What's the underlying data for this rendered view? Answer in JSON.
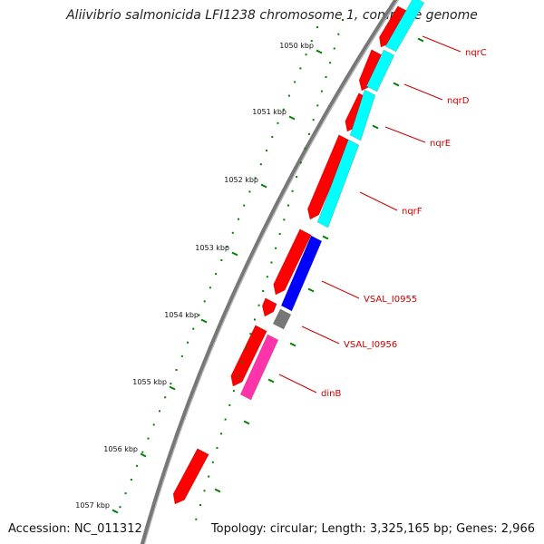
{
  "title": "Aliivibrio salmonicida LFI1238 chromosome 1, complete genome",
  "footer": {
    "accession": "Accession: NC_011312",
    "summary": "Topology: circular; Length: 3,325,165 bp; Genes: 2,966"
  },
  "ticks": [
    "1050 kbp",
    "1051 kbp",
    "1052 kbp",
    "1053 kbp",
    "1054 kbp",
    "1055 kbp",
    "1056 kbp",
    "1057 kbp"
  ],
  "gene_labels": [
    "nqrC",
    "nqrD",
    "nqrE",
    "nqrF",
    "VSAL_I0955",
    "VSAL_I0956",
    "dinB"
  ],
  "colors": {
    "backbone": "#777777",
    "forward_cds": "#ff0000",
    "nqr_operon": "#00ffff",
    "VSAL_I0955": "#0000ff",
    "VSAL_I0956": "#777777",
    "dinB": "#ff33aa",
    "tick_marks": "#008000",
    "labels": "#cc0000"
  }
}
